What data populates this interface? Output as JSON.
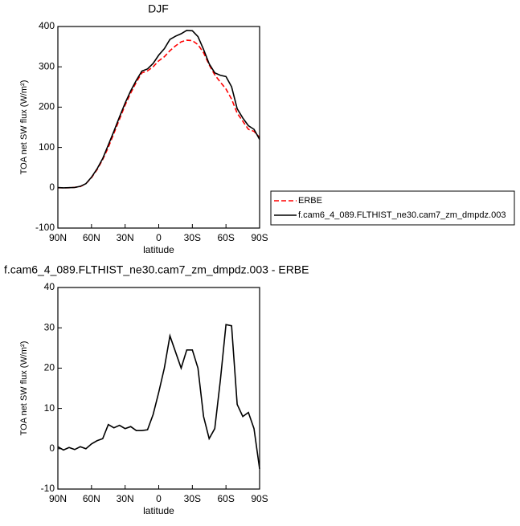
{
  "chart_data": [
    {
      "type": "line",
      "title": "DJF",
      "xlabel": "latitude",
      "ylabel": "TOA net SW flux (W/m²)",
      "x": [
        90,
        85,
        80,
        75,
        70,
        65,
        60,
        55,
        50,
        45,
        40,
        35,
        30,
        25,
        20,
        15,
        10,
        5,
        0,
        -5,
        -10,
        -15,
        -20,
        -25,
        -30,
        -35,
        -40,
        -45,
        -50,
        -55,
        -60,
        -65,
        -70,
        -75,
        -80,
        -85,
        -90
      ],
      "series": [
        {
          "name": "ERBE",
          "color": "#ff0000",
          "line_style": "dashed",
          "values": [
            0,
            0,
            0,
            1,
            3,
            10,
            25,
            45,
            70,
            100,
            135,
            170,
            205,
            235,
            262,
            285,
            290,
            300,
            315,
            325,
            340,
            352,
            362,
            366,
            365,
            355,
            335,
            305,
            280,
            262,
            245,
            220,
            185,
            165,
            145,
            140,
            125
          ]
        },
        {
          "name": "f.cam6_4_089.FLTHIST_ne30.cam7_zm_dmpdz.003",
          "color": "#000000",
          "line_style": "solid",
          "values": [
            0.5,
            -0.3,
            0.3,
            0.8,
            3.5,
            10,
            26.2,
            47,
            72.5,
            106,
            140.2,
            175.8,
            210,
            240.5,
            266.5,
            289.5,
            294.7,
            308.5,
            329,
            345,
            368,
            376,
            382,
            390.5,
            389.5,
            375,
            343,
            307.5,
            285,
            279,
            275.8,
            250.5,
            196,
            173,
            154,
            145,
            120
          ]
        }
      ],
      "xlim": [
        90,
        -90
      ],
      "xticks": [
        {
          "value": 90,
          "label": "90N"
        },
        {
          "value": 60,
          "label": "60N"
        },
        {
          "value": 30,
          "label": "30N"
        },
        0,
        {
          "value": -30,
          "label": "30S"
        },
        {
          "value": -60,
          "label": "60S"
        },
        {
          "value": -90,
          "label": "90S"
        }
      ],
      "ylim": [
        -100,
        400
      ],
      "yticks": [
        -100,
        0,
        100,
        200,
        300,
        400
      ],
      "legend": "outside right"
    },
    {
      "type": "line",
      "title": "f.cam6_4_089.FLTHIST_ne30.cam7_zm_dmpdz.003 - ERBE",
      "xlabel": "latitude",
      "ylabel": "TOA net SW flux (W/m²)",
      "x": [
        90,
        85,
        80,
        75,
        70,
        65,
        60,
        55,
        50,
        45,
        40,
        35,
        30,
        25,
        20,
        15,
        10,
        5,
        0,
        -5,
        -10,
        -15,
        -20,
        -25,
        -30,
        -35,
        -40,
        -45,
        -50,
        -55,
        -60,
        -65,
        -70,
        -75,
        -80,
        -85,
        -90
      ],
      "series": [
        {
          "color": "#000000",
          "line_style": "solid",
          "values": [
            0.5,
            -0.3,
            0.3,
            -0.2,
            0.5,
            0,
            1.2,
            2,
            2.5,
            6,
            5.2,
            5.8,
            5,
            5.5,
            4.5,
            4.5,
            4.7,
            8.5,
            14,
            20,
            28,
            24,
            20,
            24.5,
            24.5,
            20,
            8,
            2.5,
            5,
            17,
            30.8,
            30.5,
            11,
            8,
            9,
            5,
            -5
          ]
        }
      ],
      "xlim": [
        90,
        -90
      ],
      "xticks": [
        {
          "value": 90,
          "label": "90N"
        },
        {
          "value": 60,
          "label": "60N"
        },
        {
          "value": 30,
          "label": "30N"
        },
        0,
        {
          "value": -30,
          "label": "30S"
        },
        {
          "value": -60,
          "label": "60S"
        },
        {
          "value": -90,
          "label": "90S"
        }
      ],
      "ylim": [
        -10,
        40
      ],
      "yticks": [
        -10,
        0,
        10,
        20,
        30,
        40
      ]
    }
  ]
}
